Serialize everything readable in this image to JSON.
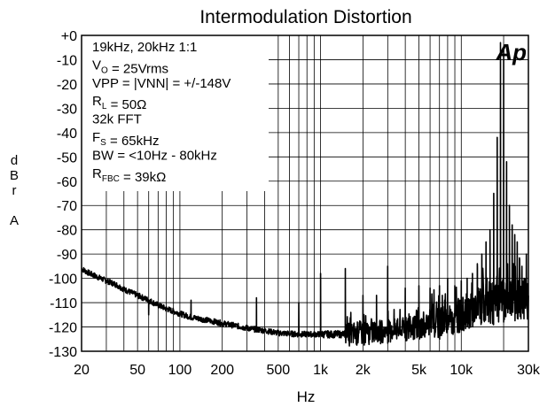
{
  "chart_data": {
    "type": "line",
    "title": "Intermodulation Distortion",
    "xlabel": "Hz",
    "ylabel_chars": [
      "d",
      "B",
      "r",
      "",
      "A"
    ],
    "x_scale": "log",
    "xlim": [
      20,
      30000
    ],
    "ylim": [
      -130,
      0
    ],
    "grid": true,
    "x_ticks": [
      {
        "value": 20,
        "label": "20"
      },
      {
        "value": 50,
        "label": "50"
      },
      {
        "value": 100,
        "label": "100"
      },
      {
        "value": 200,
        "label": "200"
      },
      {
        "value": 500,
        "label": "500"
      },
      {
        "value": 1000,
        "label": "1k"
      },
      {
        "value": 2000,
        "label": "2k"
      },
      {
        "value": 5000,
        "label": "5k"
      },
      {
        "value": 10000,
        "label": "10k"
      },
      {
        "value": 30000,
        "label": "30k"
      }
    ],
    "y_ticks": [
      {
        "value": 0,
        "label": "+0"
      },
      {
        "value": -10,
        "label": "-10"
      },
      {
        "value": -20,
        "label": "-20"
      },
      {
        "value": -30,
        "label": "-30"
      },
      {
        "value": -40,
        "label": "-40"
      },
      {
        "value": -50,
        "label": "-50"
      },
      {
        "value": -60,
        "label": "-60"
      },
      {
        "value": -70,
        "label": "-70"
      },
      {
        "value": -80,
        "label": "-80"
      },
      {
        "value": -90,
        "label": "-90"
      },
      {
        "value": -100,
        "label": "-100"
      },
      {
        "value": -110,
        "label": "-110"
      },
      {
        "value": -120,
        "label": "-120"
      },
      {
        "value": -130,
        "label": "-130"
      }
    ],
    "annotation_lines": [
      [
        {
          "t": "19kHz, 20kHz 1:1"
        }
      ],
      [
        {
          "t": "V"
        },
        {
          "t": "O",
          "sub": true
        },
        {
          "t": " = 25Vrms"
        }
      ],
      [
        {
          "t": "VPP = |VNN| = +/-148V"
        }
      ],
      [
        {
          "t": "R"
        },
        {
          "t": "L",
          "sub": true
        },
        {
          "t": " = 50Ω"
        }
      ],
      [
        {
          "t": "32k FFT"
        }
      ],
      [
        {
          "t": "F"
        },
        {
          "t": "S",
          "sub": true
        },
        {
          "t": " = 65kHz"
        }
      ],
      [
        {
          "t": "BW = <10Hz - 80kHz"
        }
      ],
      [
        {
          "t": "R"
        },
        {
          "t": "FBC",
          "sub": true
        },
        {
          "t": " = 39kΩ"
        }
      ]
    ],
    "logo": "Ap",
    "logo_color": "#1a1aff",
    "line_color": "#000000",
    "series": [
      {
        "baseline": [
          [
            20,
            -96
          ],
          [
            22,
            -97.5
          ],
          [
            25,
            -99
          ],
          [
            30,
            -101
          ],
          [
            35,
            -102.5
          ],
          [
            40,
            -104.5
          ],
          [
            50,
            -107
          ],
          [
            60,
            -109
          ],
          [
            70,
            -111
          ],
          [
            80,
            -112.5
          ],
          [
            100,
            -114.5
          ],
          [
            120,
            -116
          ],
          [
            150,
            -117
          ],
          [
            200,
            -118.5
          ],
          [
            250,
            -119.5
          ],
          [
            300,
            -120.5
          ],
          [
            400,
            -121.5
          ],
          [
            500,
            -122.5
          ],
          [
            700,
            -123
          ],
          [
            1000,
            -123
          ],
          [
            1500,
            -123
          ],
          [
            2000,
            -122.5
          ],
          [
            3000,
            -122
          ],
          [
            4000,
            -121
          ],
          [
            5000,
            -120
          ],
          [
            6000,
            -119
          ],
          [
            7000,
            -118
          ],
          [
            8000,
            -117
          ],
          [
            9000,
            -116
          ],
          [
            10000,
            -115
          ],
          [
            12000,
            -113
          ],
          [
            15000,
            -111
          ],
          [
            18000,
            -110
          ],
          [
            22000,
            -109
          ],
          [
            26000,
            -109
          ],
          [
            30000,
            -108
          ]
        ],
        "noise_ranges": [
          {
            "from": 20,
            "to": 1000,
            "amp": 1.2
          },
          {
            "from": 1000,
            "to": 1500,
            "amp": 1.5
          },
          {
            "from": 1500,
            "to": 6000,
            "amp": 5
          },
          {
            "from": 6000,
            "to": 13000,
            "amp": 7
          },
          {
            "from": 13000,
            "to": 30000,
            "amp": 9
          }
        ],
        "peaks": [
          [
            19000,
            -3
          ],
          [
            20000,
            -5
          ],
          [
            18000,
            -42
          ],
          [
            21000,
            -52
          ],
          [
            17000,
            -65
          ],
          [
            22000,
            -70
          ],
          [
            16000,
            -80
          ],
          [
            23000,
            -78
          ],
          [
            15000,
            -85
          ],
          [
            24000,
            -82
          ],
          [
            14000,
            -90
          ],
          [
            25000,
            -85
          ],
          [
            13000,
            -94
          ],
          [
            26000,
            -92
          ],
          [
            27000,
            -95
          ],
          [
            28000,
            -100
          ],
          [
            29000,
            -90
          ],
          [
            12000,
            -98
          ],
          [
            11000,
            -100
          ],
          [
            10000,
            -101
          ],
          [
            9000,
            -103
          ],
          [
            8000,
            -100
          ],
          [
            7000,
            -103
          ],
          [
            6000,
            -104
          ],
          [
            5000,
            -103
          ],
          [
            4000,
            -104
          ],
          [
            3000,
            -95
          ],
          [
            2500,
            -107
          ],
          [
            2000,
            -107
          ],
          [
            1500,
            -96
          ],
          [
            1000,
            -98
          ],
          [
            700,
            -110
          ],
          [
            350,
            -108
          ],
          [
            120,
            -109
          ],
          [
            60,
            -115
          ]
        ]
      }
    ]
  }
}
